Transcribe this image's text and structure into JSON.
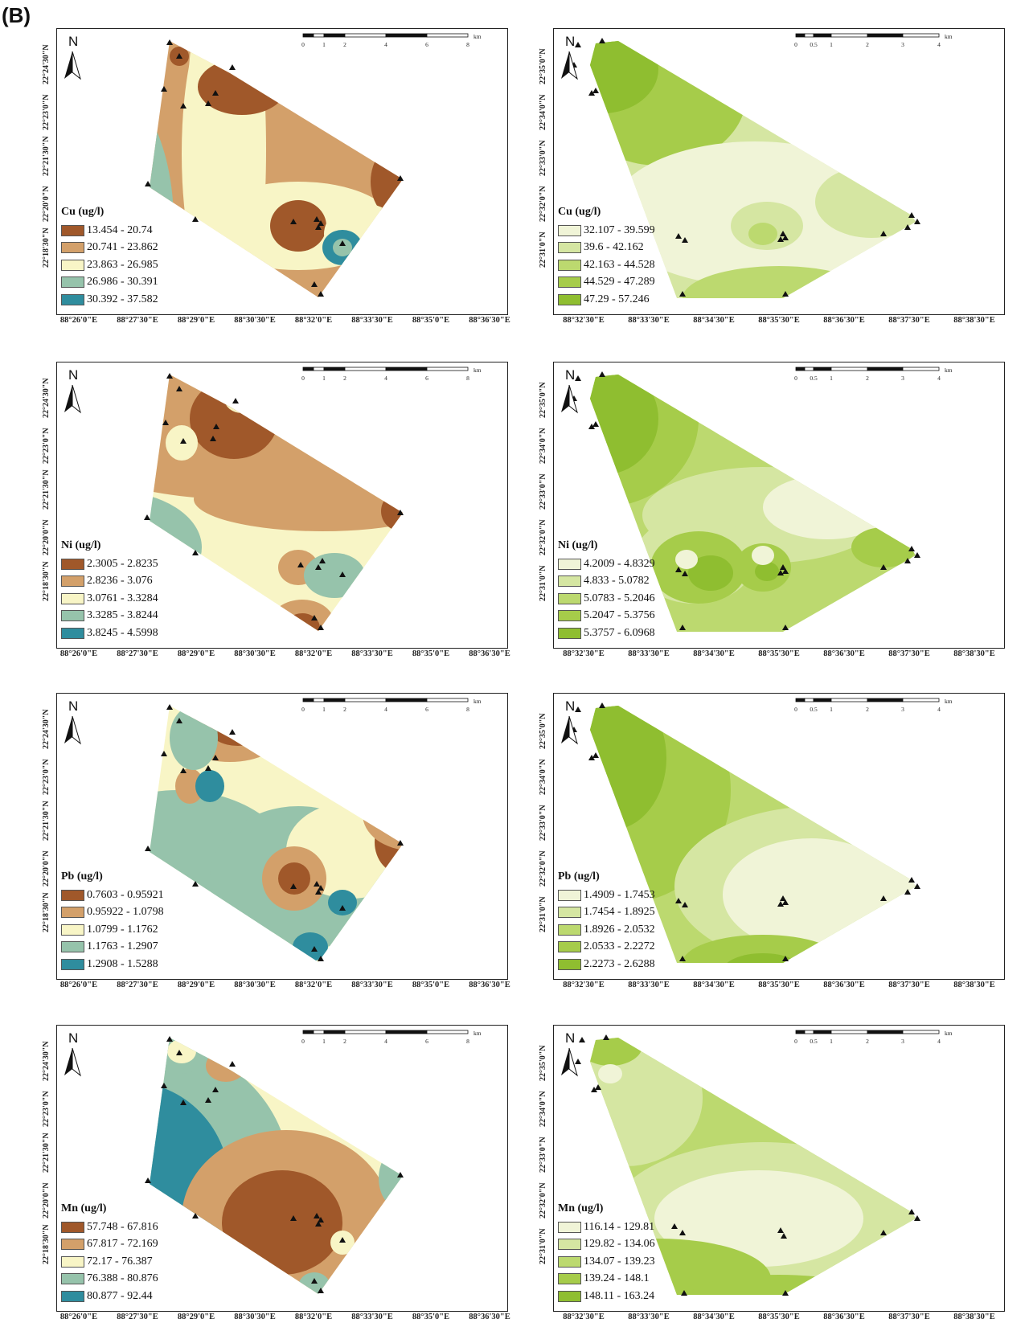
{
  "figure_label": "(B)",
  "north_label": "N",
  "scale_unit": "km",
  "scale_left_ticks": [
    "0",
    "1",
    "2",
    "4",
    "6",
    "8"
  ],
  "scale_right_ticks": [
    "0",
    "0.5",
    "1",
    "2",
    "3",
    "4"
  ],
  "left_x_ticks": [
    "88°26'0\"E",
    "88°27'30\"E",
    "88°29'0\"E",
    "88°30'30\"E",
    "88°32'0\"E",
    "88°33'30\"E",
    "88°35'0\"E",
    "88°36'30\"E"
  ],
  "left_y_ticks": [
    "22°24'30\"N",
    "22°23'0\"N",
    "22°21'30\"N",
    "22°20'0\"N",
    "22°18'30\"N"
  ],
  "right_x_ticks": [
    "88°32'30\"E",
    "88°33'30\"E",
    "88°34'30\"E",
    "88°35'30\"E",
    "88°36'30\"E",
    "88°37'30\"E",
    "88°38'30\"E"
  ],
  "right_y_ticks": [
    "22°35'0\"N",
    "22°34'0\"N",
    "22°33'0\"N",
    "22°32'0\"N",
    "22°31'0\"N"
  ],
  "colors": {
    "brown": [
      "#a0582a",
      "#d3a06a",
      "#f8f5c6",
      "#96c3ab",
      "#2f8d9e"
    ],
    "green": [
      "#f0f4d7",
      "#d5e6a2",
      "#bcd96f",
      "#a6cc4a",
      "#8fbe30"
    ],
    "triangle": "#111111",
    "frame": "#222222"
  },
  "panels": [
    {
      "id": "cu-left",
      "title": "Cu (ug/l)",
      "ramp": "brown",
      "classes": [
        "13.454 - 20.74",
        "20.741 - 23.862",
        "23.863 - 26.985",
        "26.986 - 30.391",
        "30.392 - 37.582"
      ]
    },
    {
      "id": "cu-right",
      "title": "Cu (ug/l)",
      "ramp": "green",
      "classes": [
        "32.107 - 39.599",
        "39.6 - 42.162",
        "42.163 - 44.528",
        "44.529 - 47.289",
        "47.29 - 57.246"
      ]
    },
    {
      "id": "ni-left",
      "title": "Ni (ug/l)",
      "ramp": "brown",
      "classes": [
        "2.3005 - 2.8235",
        "2.8236 - 3.076",
        "3.0761 - 3.3284",
        "3.3285 - 3.8244",
        "3.8245 - 4.5998"
      ]
    },
    {
      "id": "ni-right",
      "title": "Ni (ug/l)",
      "ramp": "green",
      "classes": [
        "4.2009 - 4.8329",
        "4.833 - 5.0782",
        "5.0783 - 5.2046",
        "5.2047 - 5.3756",
        "5.3757 - 6.0968"
      ]
    },
    {
      "id": "pb-left",
      "title": "Pb (ug/l)",
      "ramp": "brown",
      "classes": [
        "0.7603 - 0.95921",
        "0.95922 - 1.0798",
        "1.0799 - 1.1762",
        "1.1763 - 1.2907",
        "1.2908 - 1.5288"
      ]
    },
    {
      "id": "pb-right",
      "title": "Pb (ug/l)",
      "ramp": "green",
      "classes": [
        "1.4909 - 1.7453",
        "1.7454 - 1.8925",
        "1.8926 - 2.0532",
        "2.0533 - 2.2272",
        "2.2273 - 2.6288"
      ]
    },
    {
      "id": "mn-left",
      "title": "Mn (ug/l)",
      "ramp": "brown",
      "classes": [
        "57.748 - 67.816",
        "67.817 - 72.169",
        "72.17 - 76.387",
        "76.388 - 80.876",
        "80.877 - 92.44"
      ]
    },
    {
      "id": "mn-right",
      "title": "Mn (ug/l)",
      "ramp": "green",
      "classes": [
        "116.14 - 129.81",
        "129.82 - 134.06",
        "134.07 - 139.23",
        "139.24 - 148.1",
        "148.11 - 163.24"
      ]
    }
  ]
}
